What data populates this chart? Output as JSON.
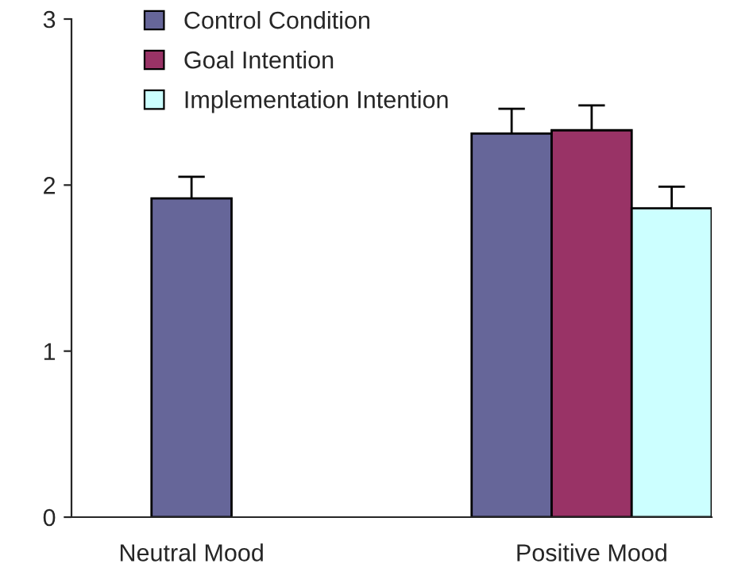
{
  "chart_data": {
    "type": "bar",
    "categories": [
      "Neutral Mood",
      "Positive Mood"
    ],
    "series": [
      {
        "name": "Control Condition",
        "color": "#666699",
        "values": [
          1.92,
          2.31
        ],
        "errors": [
          0.13,
          0.15
        ]
      },
      {
        "name": "Goal Intention",
        "color": "#993366",
        "values": [
          null,
          2.33
        ],
        "errors": [
          null,
          0.15
        ]
      },
      {
        "name": "Implementation Intention",
        "color": "#ccffff",
        "values": [
          null,
          1.86
        ],
        "errors": [
          null,
          0.13
        ]
      }
    ],
    "ylim": [
      0,
      3
    ],
    "yticks": [
      0,
      1,
      2,
      3
    ],
    "grid": false,
    "legend": "top left"
  }
}
